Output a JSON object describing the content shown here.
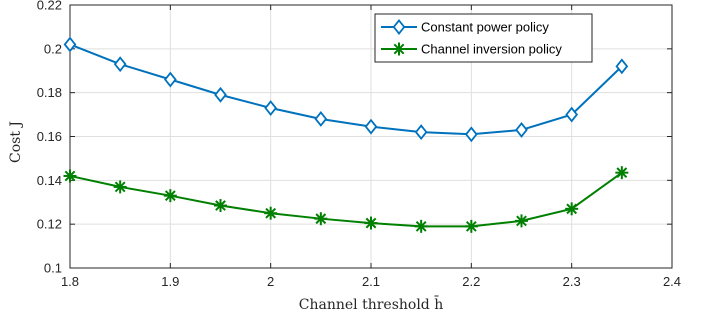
{
  "chart_data": {
    "type": "line",
    "x": [
      1.8,
      1.85,
      1.9,
      1.95,
      2.0,
      2.05,
      2.1,
      2.15,
      2.2,
      2.25,
      2.3,
      2.35
    ],
    "series": [
      {
        "name": "Constant power policy",
        "values": [
          0.202,
          0.193,
          0.186,
          0.179,
          0.173,
          0.168,
          0.1645,
          0.162,
          0.161,
          0.163,
          0.17,
          0.192
        ],
        "color": "#0072BD",
        "marker": "diamond"
      },
      {
        "name": "Channel inversion policy",
        "values": [
          0.142,
          0.137,
          0.133,
          0.1285,
          0.125,
          0.1225,
          0.1205,
          0.119,
          0.119,
          0.1215,
          0.127,
          0.1435
        ],
        "color": "#008000",
        "marker": "asterisk"
      }
    ],
    "xlim": [
      1.8,
      2.4
    ],
    "ylim": [
      0.1,
      0.22
    ],
    "xticks": [
      1.8,
      1.9,
      2.0,
      2.1,
      2.2,
      2.3,
      2.4
    ],
    "xtick_labels": [
      "1.8",
      "1.9",
      "2",
      "2.1",
      "2.2",
      "2.3",
      "2.4"
    ],
    "yticks": [
      0.1,
      0.12,
      0.14,
      0.16,
      0.18,
      0.2,
      0.22
    ],
    "ytick_labels": [
      "0.1",
      "0.12",
      "0.14",
      "0.16",
      "0.18",
      "0.2",
      "0.22"
    ],
    "xlabel": "Channel threshold h̄",
    "ylabel": "Cost J",
    "grid": true,
    "legend_position": "top-right"
  }
}
